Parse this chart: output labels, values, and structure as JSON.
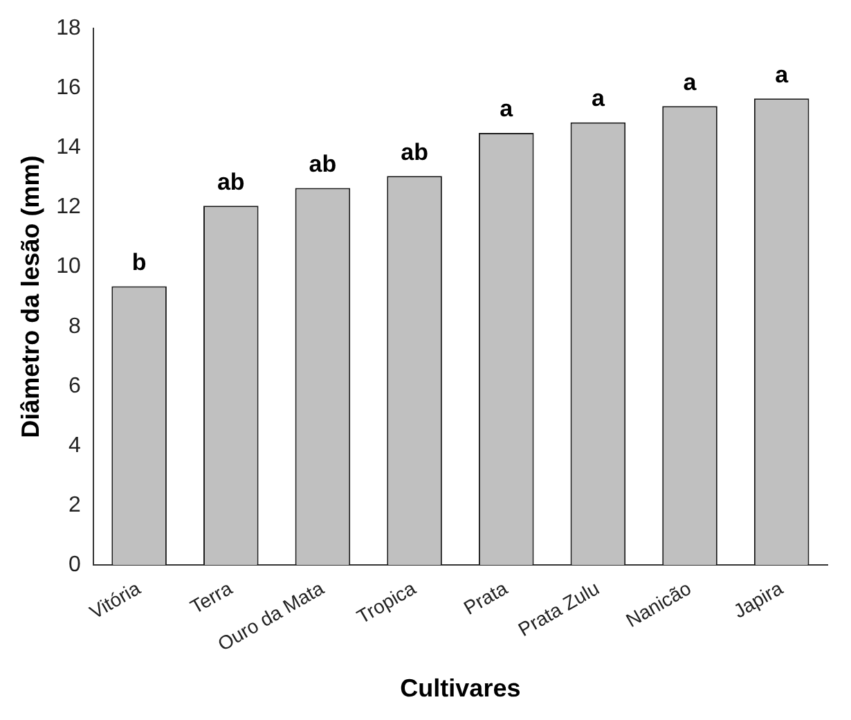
{
  "chart_data": {
    "type": "bar",
    "xlabel": "Cultivares",
    "ylabel": "Diâmetro da lesão (mm)",
    "categories": [
      "Vitória",
      "Terra",
      "Ouro da Mata",
      "Tropica",
      "Prata",
      "Prata Zulu",
      "Nanicão",
      "Japira"
    ],
    "values": [
      9.35,
      12.05,
      12.65,
      13.05,
      14.5,
      14.85,
      15.4,
      15.65
    ],
    "color": "#c0c0c0",
    "ylim": [
      0,
      18
    ],
    "yticks": [
      0,
      2,
      4,
      6,
      8,
      10,
      12,
      14,
      16,
      18
    ],
    "grid": false,
    "legend": false,
    "annotations": [
      {
        "text": "b",
        "x": "Vitória",
        "y": 9.35
      },
      {
        "text": "ab",
        "x": "Terra",
        "y": 12.05
      },
      {
        "text": "ab",
        "x": "Ouro da Mata",
        "y": 12.65
      },
      {
        "text": "ab",
        "x": "Tropica",
        "y": 13.05
      },
      {
        "text": "a",
        "x": "Prata",
        "y": 14.5
      },
      {
        "text": "a",
        "x": "Prata Zulu",
        "y": 14.85
      },
      {
        "text": "a",
        "x": "Nanicão",
        "y": 15.4
      },
      {
        "text": "a",
        "x": "Japira",
        "y": 15.65
      }
    ]
  }
}
